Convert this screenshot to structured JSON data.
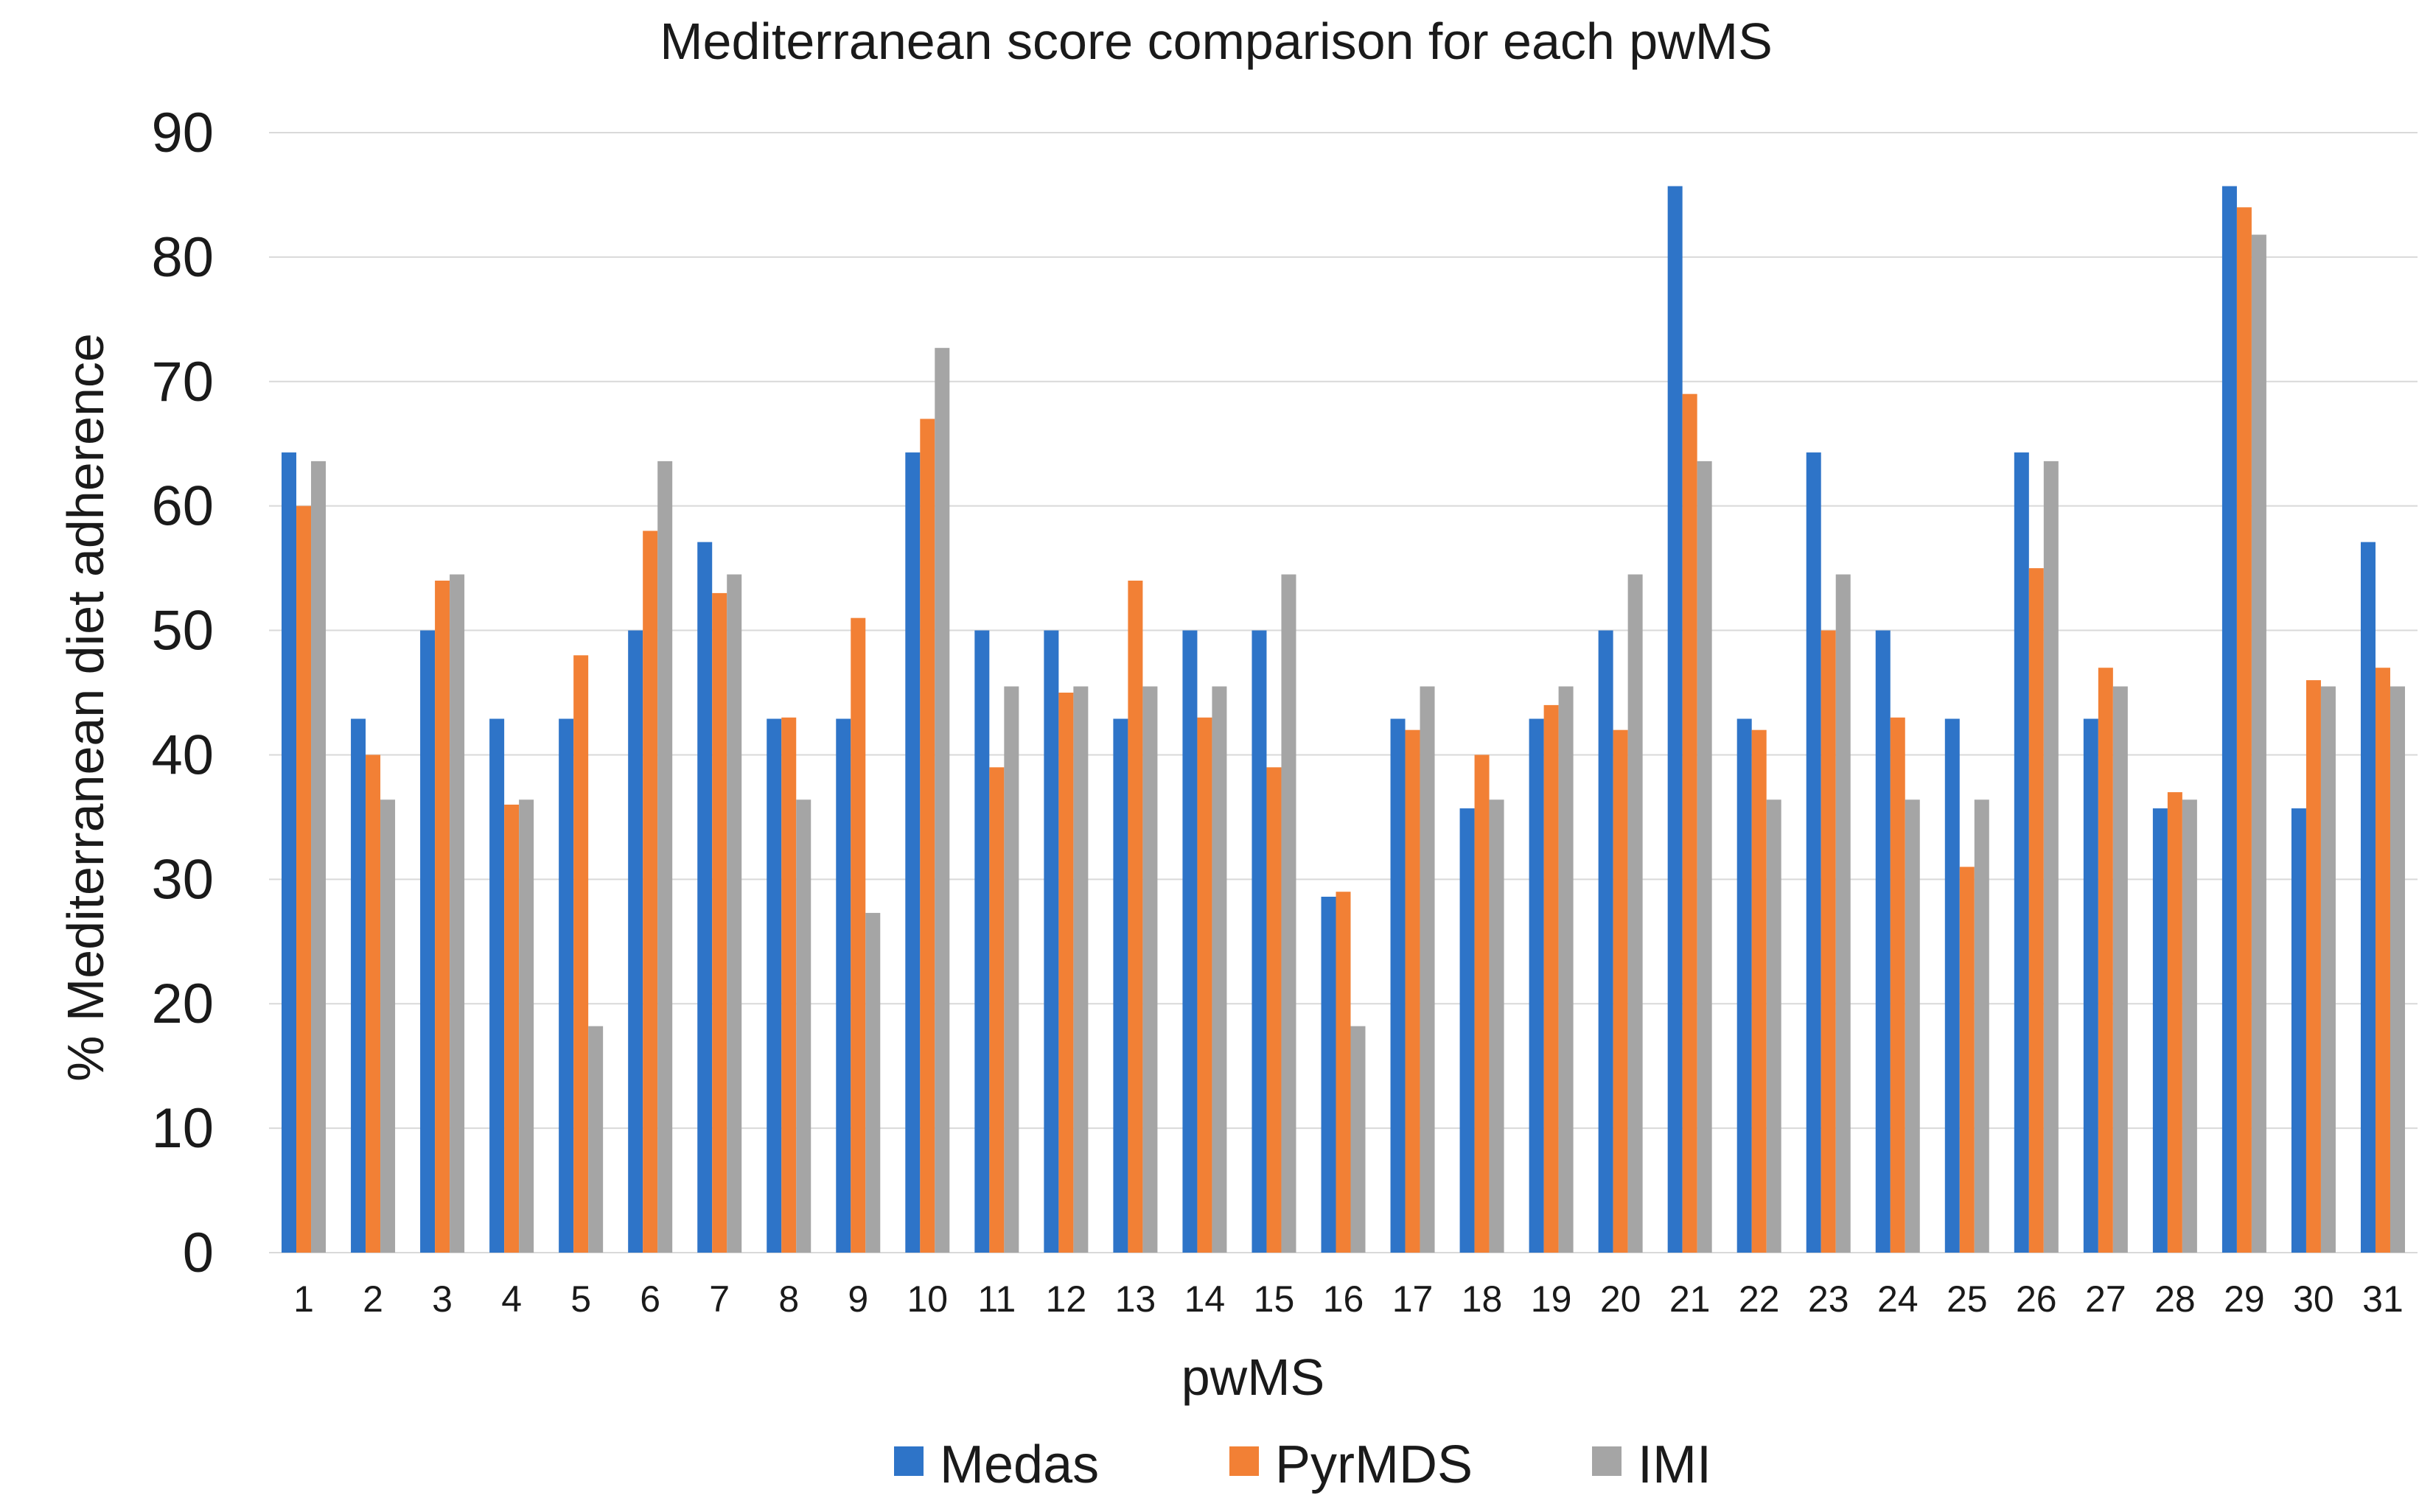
{
  "chart_data": {
    "type": "bar",
    "title": "Mediterranean score comparison for each pwMS",
    "xlabel": "pwMS",
    "ylabel": "% Mediterranean diet adherence",
    "ylim": [
      0,
      90
    ],
    "yticks": [
      0,
      10,
      20,
      30,
      40,
      50,
      60,
      70,
      80,
      90
    ],
    "grid": true,
    "legend_position": "bottom",
    "categories": [
      "1",
      "2",
      "3",
      "4",
      "5",
      "6",
      "7",
      "8",
      "9",
      "10",
      "11",
      "12",
      "13",
      "14",
      "15",
      "16",
      "17",
      "18",
      "19",
      "20",
      "21",
      "22",
      "23",
      "24",
      "25",
      "26",
      "27",
      "28",
      "29",
      "30",
      "31"
    ],
    "series": [
      {
        "name": "Medas",
        "color": "#2e74c8",
        "values": [
          64.3,
          42.9,
          50,
          42.9,
          42.9,
          50,
          57.1,
          42.9,
          42.9,
          64.3,
          50,
          50,
          42.9,
          50,
          50,
          28.6,
          42.9,
          35.7,
          42.9,
          50,
          85.7,
          42.9,
          64.3,
          50,
          42.9,
          64.3,
          42.9,
          35.7,
          85.7,
          35.7,
          57.1
        ]
      },
      {
        "name": "PyrMDS",
        "color": "#f28035",
        "values": [
          60,
          40,
          54,
          36,
          48,
          58,
          53,
          43,
          51,
          67,
          39,
          45,
          54,
          43,
          39,
          29,
          42,
          40,
          44,
          42,
          69,
          42,
          50,
          43,
          31,
          55,
          47,
          37,
          84,
          46,
          47
        ]
      },
      {
        "name": "IMI",
        "color": "#a5a5a5",
        "values": [
          63.6,
          36.4,
          54.5,
          36.4,
          18.2,
          63.6,
          54.5,
          36.4,
          27.3,
          72.7,
          45.5,
          45.5,
          45.5,
          45.5,
          54.5,
          18.2,
          45.5,
          36.4,
          45.5,
          54.5,
          63.6,
          36.4,
          54.5,
          36.4,
          36.4,
          63.6,
          45.5,
          36.4,
          81.8,
          45.5,
          45.5
        ]
      }
    ]
  }
}
